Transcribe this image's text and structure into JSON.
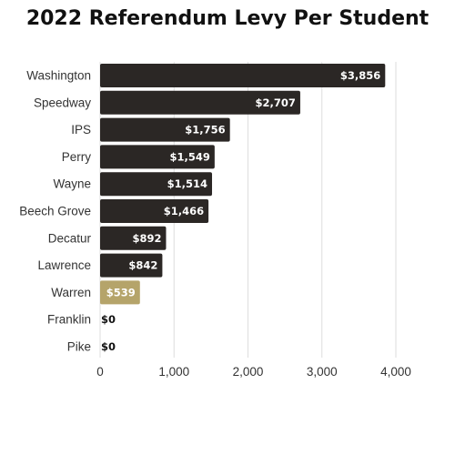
{
  "chart_data": {
    "type": "bar",
    "orientation": "horizontal",
    "title": "2022 Referendum Levy Per Student",
    "categories": [
      "Washington",
      "Speedway",
      "IPS",
      "Perry",
      "Wayne",
      "Beech Grove",
      "Decatur",
      "Lawrence",
      "Warren",
      "Franklin",
      "Pike"
    ],
    "values": [
      3856,
      2707,
      1756,
      1549,
      1514,
      1466,
      892,
      842,
      539,
      0,
      0
    ],
    "value_labels": [
      "$3,856",
      "$2,707",
      "$1,756",
      "$1,549",
      "$1,514",
      "$1,466",
      "$892",
      "$842",
      "$539",
      "$0",
      "$0"
    ],
    "highlight_category": "Warren",
    "xlim": [
      0,
      4000
    ],
    "xticks": [
      0,
      1000,
      2000,
      3000,
      4000
    ],
    "xtick_labels": [
      "0",
      "1,000",
      "2,000",
      "3,000",
      "4,000"
    ],
    "xlabel": "",
    "ylabel": "",
    "grid": "vertical",
    "colors": {
      "bar": "#2b2725",
      "highlight": "#b5a46a",
      "grid": "#dddddd",
      "label_on_bar": "#ffffff",
      "label_off_bar": "#111111"
    }
  }
}
